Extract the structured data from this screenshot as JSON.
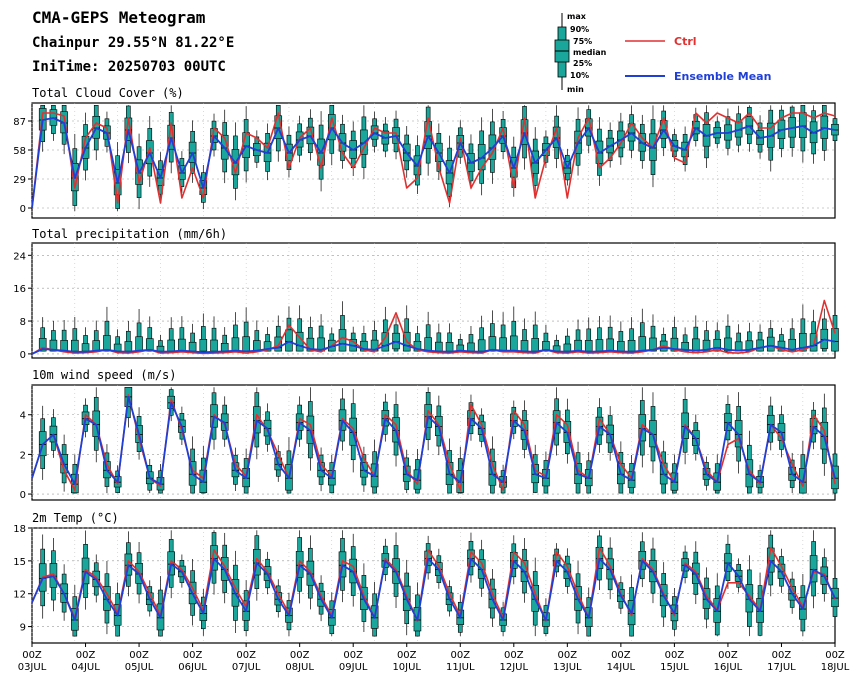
{
  "header": {
    "title": "CMA-GEPS Meteogram",
    "location": "Chainpur 29.55°N 81.22°E",
    "init_time": "IniTime: 20250703 00UTC"
  },
  "legend": {
    "box_labels": [
      "max",
      "90%",
      "75%",
      "median",
      "25%",
      "10%",
      "min"
    ],
    "ctrl_label": "Ctrl",
    "mean_label": "Ensemble Mean",
    "ctrl_color": "#e03131",
    "mean_color": "#1f3fd6",
    "box_fill": "#1aa69a"
  },
  "x_axis": {
    "hour_label": "00Z",
    "day_labels": [
      "03JUL",
      "04JUL",
      "05JUL",
      "06JUL",
      "07JUL",
      "08JUL",
      "09JUL",
      "10JUL",
      "11JUL",
      "12JUL",
      "13JUL",
      "14JUL",
      "15JUL",
      "16JUL",
      "17JUL",
      "18JUL"
    ]
  },
  "chart_data": [
    {
      "type": "line",
      "title": "Total Cloud Cover (%)",
      "ylim": [
        -10,
        105
      ],
      "yticks": [
        0,
        29,
        58,
        87
      ],
      "x_step_hours": 6,
      "series": [
        {
          "name": "Ctrl",
          "values": [
            0,
            95,
            95,
            92,
            20,
            70,
            85,
            80,
            5,
            90,
            25,
            60,
            5,
            85,
            10,
            40,
            10,
            80,
            70,
            35,
            75,
            70,
            60,
            95,
            40,
            70,
            80,
            40,
            90,
            55,
            40,
            60,
            80,
            75,
            75,
            20,
            30,
            90,
            40,
            5,
            70,
            20,
            40,
            55,
            80,
            20,
            90,
            10,
            50,
            80,
            10,
            70,
            90,
            40,
            50,
            65,
            85,
            70,
            60,
            90,
            50,
            45,
            95,
            85,
            95,
            90,
            85,
            95,
            80,
            80,
            90,
            95,
            95,
            90,
            95,
            92
          ]
        },
        {
          "name": "Ensemble Mean",
          "values": [
            0,
            88,
            90,
            85,
            30,
            60,
            80,
            75,
            25,
            78,
            35,
            55,
            30,
            70,
            35,
            55,
            20,
            72,
            60,
            45,
            62,
            58,
            55,
            80,
            55,
            68,
            72,
            55,
            80,
            65,
            58,
            65,
            75,
            70,
            72,
            55,
            42,
            72,
            55,
            35,
            65,
            45,
            50,
            60,
            72,
            40,
            75,
            45,
            58,
            70,
            40,
            65,
            80,
            55,
            62,
            68,
            75,
            65,
            60,
            78,
            62,
            58,
            80,
            72,
            75,
            75,
            78,
            82,
            70,
            72,
            78,
            80,
            82,
            75,
            80,
            78
          ]
        }
      ]
    },
    {
      "type": "line",
      "title": "Total precipitation (mm/6h)",
      "ylim": [
        -1,
        27
      ],
      "yticks": [
        0,
        8,
        16,
        24
      ],
      "x_step_hours": 6,
      "series": [
        {
          "name": "Ctrl",
          "values": [
            0,
            1.5,
            1,
            0.5,
            0.2,
            0.3,
            0.5,
            1,
            0.3,
            0.2,
            0.5,
            1,
            0.2,
            0.3,
            0.5,
            0.3,
            0.1,
            0.2,
            0.3,
            0.5,
            0.2,
            0.5,
            1,
            2,
            7,
            4,
            1,
            0.5,
            2,
            4,
            3,
            1,
            0.5,
            4,
            10,
            3,
            1,
            0.5,
            0.3,
            0.2,
            0.5,
            0.3,
            0.2,
            1,
            0.5,
            0.5,
            0.3,
            0.2,
            1,
            0.3,
            0.2,
            0.5,
            0.2,
            0.3,
            0.5,
            0.3,
            0.2,
            0.5,
            1,
            2,
            1,
            0.5,
            0.3,
            0.5,
            1,
            0.3,
            0.2,
            0.5,
            1.5,
            2,
            1,
            0.5,
            1,
            2,
            13,
            5
          ]
        },
        {
          "name": "Ensemble Mean",
          "values": [
            0,
            1.2,
            1,
            0.8,
            0.5,
            0.5,
            0.8,
            1,
            0.6,
            0.5,
            0.8,
            1,
            0.5,
            0.6,
            0.8,
            0.6,
            0.4,
            0.5,
            0.6,
            0.8,
            0.6,
            0.8,
            1.2,
            1.5,
            3,
            2,
            1.2,
            1,
            1.8,
            2.5,
            2,
            1.2,
            1,
            2,
            3,
            2,
            1.2,
            0.8,
            0.6,
            0.5,
            0.8,
            0.6,
            0.5,
            1,
            0.8,
            0.8,
            0.6,
            0.5,
            1,
            0.6,
            0.5,
            0.8,
            0.5,
            0.6,
            0.8,
            0.6,
            0.5,
            0.8,
            1,
            1.5,
            1.2,
            1,
            0.8,
            1,
            1.5,
            1,
            0.8,
            1,
            1.5,
            2,
            1.5,
            1,
            1.5,
            2,
            3.5,
            3
          ]
        }
      ]
    },
    {
      "type": "line",
      "title": "10m wind speed (m/s)",
      "ylim": [
        -0.3,
        5.5
      ],
      "yticks": [
        0,
        2,
        4
      ],
      "x_step_hours": 6,
      "series": [
        {
          "name": "Ctrl",
          "values": [
            0.8,
            2.5,
            3.0,
            1.2,
            0.2,
            4.0,
            3.5,
            1.5,
            0.5,
            5.0,
            2.8,
            0.8,
            0.4,
            4.8,
            3.2,
            1.2,
            0.8,
            4.0,
            3.5,
            1.5,
            0.9,
            4.0,
            3.2,
            2.0,
            0.8,
            3.8,
            3.5,
            1.5,
            0.9,
            3.8,
            3.3,
            1.8,
            0.9,
            4.0,
            3.5,
            1.2,
            0.5,
            4.2,
            3.5,
            1.5,
            0.2,
            4.5,
            3.5,
            1.5,
            0.2,
            4.2,
            3.5,
            1.2,
            0.9,
            4.0,
            3.5,
            1.2,
            0.8,
            3.8,
            3.0,
            1.5,
            0.8,
            3.5,
            3.0,
            1.5,
            0.6,
            3.5,
            2.8,
            1.2,
            0.6,
            2.5,
            2.8,
            1.2,
            0.5,
            3.5,
            2.8,
            1.5,
            0.4,
            4.0,
            3.2,
            0.5
          ]
        },
        {
          "name": "Ensemble Mean",
          "values": [
            0.8,
            2.5,
            3.0,
            1.5,
            0.5,
            3.8,
            3.5,
            1.2,
            0.6,
            4.9,
            3.0,
            0.8,
            0.5,
            4.6,
            3.4,
            1.0,
            0.6,
            3.9,
            3.6,
            1.2,
            0.8,
            3.7,
            3.3,
            1.5,
            0.8,
            3.6,
            3.2,
            1.2,
            0.8,
            3.7,
            3.1,
            1.2,
            0.9,
            3.8,
            3.2,
            1.0,
            0.7,
            3.9,
            3.4,
            1.0,
            0.6,
            3.8,
            3.3,
            1.0,
            0.6,
            3.7,
            3.2,
            1.0,
            0.8,
            3.6,
            3.1,
            1.0,
            0.8,
            3.4,
            3.0,
            1.0,
            0.7,
            3.3,
            3.0,
            1.0,
            0.6,
            3.4,
            2.8,
            1.0,
            0.6,
            3.6,
            3.0,
            1.0,
            0.6,
            3.5,
            3.1,
            1.0,
            0.6,
            3.4,
            2.9,
            0.8
          ]
        }
      ]
    },
    {
      "type": "line",
      "title": "2m Temp (°C)",
      "ylim": [
        7.5,
        18
      ],
      "yticks": [
        9,
        12,
        15,
        18
      ],
      "x_step_hours": 6,
      "series": [
        {
          "name": "Ctrl",
          "values": [
            11.2,
            13.5,
            13.8,
            12.0,
            9.8,
            14.2,
            13.5,
            12.0,
            10.2,
            15.0,
            14.0,
            12.0,
            10.0,
            15.0,
            14.2,
            12.5,
            10.5,
            16.0,
            14.5,
            12.5,
            10.8,
            15.2,
            14.0,
            12.0,
            10.2,
            15.0,
            14.0,
            11.8,
            10.0,
            15.0,
            14.5,
            11.8,
            9.8,
            15.2,
            14.2,
            11.8,
            9.5,
            16.0,
            14.5,
            12.0,
            10.0,
            15.8,
            14.8,
            12.0,
            9.8,
            15.8,
            14.8,
            12.0,
            9.5,
            15.8,
            14.5,
            12.0,
            9.8,
            16.2,
            14.5,
            12.0,
            10.0,
            15.2,
            14.2,
            12.0,
            10.0,
            14.8,
            14.0,
            11.8,
            10.5,
            13.0,
            13.0,
            11.8,
            10.5,
            16.2,
            14.5,
            12.5,
            10.8,
            14.0,
            13.8,
            11.5
          ]
        },
        {
          "name": "Ensemble Mean",
          "values": [
            11.2,
            13.4,
            13.6,
            12.0,
            9.6,
            14.0,
            13.3,
            11.5,
            10.0,
            14.6,
            13.8,
            11.5,
            9.8,
            14.7,
            14.0,
            12.0,
            10.2,
            15.2,
            14.2,
            12.0,
            10.4,
            14.8,
            13.8,
            11.5,
            10.0,
            14.6,
            13.8,
            11.5,
            9.8,
            14.6,
            14.0,
            11.5,
            9.8,
            15.0,
            14.0,
            11.5,
            9.6,
            15.2,
            14.2,
            11.5,
            9.8,
            15.2,
            14.2,
            11.5,
            9.6,
            15.0,
            14.0,
            11.5,
            9.6,
            15.0,
            14.0,
            11.5,
            9.8,
            15.2,
            14.2,
            11.8,
            10.2,
            15.0,
            14.0,
            11.8,
            10.2,
            14.6,
            13.8,
            11.5,
            10.4,
            14.8,
            13.6,
            11.5,
            10.4,
            15.0,
            14.0,
            12.0,
            10.6,
            14.2,
            13.6,
            11.6
          ]
        }
      ]
    }
  ]
}
